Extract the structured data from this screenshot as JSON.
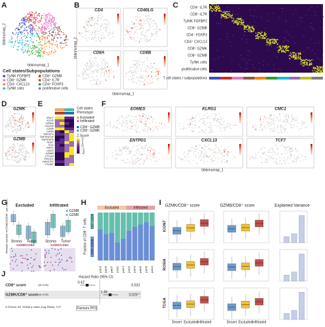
{
  "panels": {
    "A": {
      "label": "A",
      "axis_x": "bbknnumap_1",
      "axis_y": "bbknnumap_2",
      "legend_title": "Cell states/Subpopulations",
      "legend": [
        "Ty/NK FGFBP2",
        "CD8⁺ GZMB",
        "CD8⁺ GZMK",
        "CD4⁺ IL7R",
        "CD4⁺ CXCL13",
        "CD4⁺ FOXP3",
        "Ty/NK cells",
        "proliferative cells"
      ],
      "colors": [
        "#3b4cc0",
        "#d62728",
        "#e377c2",
        "#8c564b",
        "#ff7f0e",
        "#2ca02c",
        "#17becf",
        "#9467bd"
      ]
    },
    "B": {
      "label": "B",
      "genes": [
        "CD4",
        "CD40LG",
        "CD8A",
        "CD8B"
      ],
      "axis_x": "bbknnumap_1",
      "axis_y": "bbknnumap_2"
    },
    "C": {
      "label": "C",
      "rows": [
        "CD4⁺ IL7R",
        "CD8⁺ IL7R",
        "Ty/NK FGFBP2",
        "CD8⁺ GZMB",
        "CD4⁺ FOXP3",
        "CD4⁺ CXCL13",
        "CD8⁺ GZMK",
        "CD8⁺ GZMB",
        "Ty/NK cells",
        "proliferative cells"
      ],
      "bar_label": "T cell states / subpopulations"
    },
    "D": {
      "label": "D",
      "genes": [
        "GZMK",
        "GZMB"
      ],
      "axis_x": "bbknnumap_1",
      "axis_y": "bbknnumap_2"
    },
    "E": {
      "label": "E",
      "genes": [
        "GNLY",
        "ICOS",
        "GZMA",
        "CD244",
        "CD69",
        "LAYN",
        "TNFSF4",
        "TNFRSF18",
        "TNFRSF9",
        "TIGIT",
        "TOX",
        "PRF1",
        "LAG3",
        "GZMB",
        "CTLA4",
        "PDCD1",
        "HAVCR2",
        "ITGAE"
      ],
      "legend_title": "Cell states",
      "phenotype_title": "Phenotype",
      "phenotype": [
        "Excluded",
        "Infiltrated"
      ],
      "states": [
        "CD8⁺ GZMB",
        "CD8⁺ GZMK"
      ],
      "zscore_title": "Z-Score",
      "zscore_ticks": [
        "2",
        "1",
        "0",
        "-1",
        "-2"
      ]
    },
    "F": {
      "label": "F",
      "genes": [
        "EOMES",
        "KLRG1",
        "CMC1",
        "ENTPD1",
        "CXCL13",
        "TCF7"
      ],
      "axis_x": "bbknnumap_1",
      "axis_y": "bbknnumap_2"
    },
    "G": {
      "label": "G",
      "groups": [
        "Excluded",
        "Infiltrated"
      ],
      "x": [
        "Stroma",
        "Tumor"
      ],
      "legend": [
        "GZMB",
        "GZMK"
      ],
      "y_label": "Relative number of CD8A/GZMK⁺ per region",
      "img_labels": [
        "GZMB/CD8A",
        "GZMK/CD8A"
      ]
    },
    "H": {
      "label": "H",
      "groups": [
        "Excluded",
        "Infiltrated"
      ],
      "y_label": "Fraction of CD8⁺ T cells",
      "top": "CD8⁺ GZMK",
      "bottom": "CD8⁺ GZMB",
      "patients": [
        "pat03",
        "pat06",
        "pat07",
        "pat11",
        "pat13",
        "pat02",
        "pat04",
        "pat05",
        "pat09",
        "pat10"
      ],
      "gzmk": [
        0.35,
        0.45,
        0.42,
        0.62,
        0.55,
        0.38,
        0.3,
        0.25,
        0.2,
        0.28
      ]
    },
    "I": {
      "label": "I",
      "titles": [
        "GZMK/CD8⁺ score",
        "GZMB/CD8⁺ score",
        "Explained Variance"
      ],
      "cohorts": [
        "ICON7",
        "ROSIA",
        "TCGA"
      ],
      "x": [
        "Desert",
        "Excluded",
        "Infiltrated"
      ]
    },
    "J": {
      "label": "J",
      "header": "Hazard Ratio (95% CI)",
      "rows": [
        "CD8⁺ score",
        "GZMK/CD8⁺ score"
      ],
      "n": [
        "(N=103)",
        "(N=103)"
      ],
      "hr": [
        0.62,
        1.46
      ],
      "p": [
        "0.033",
        "0.029 *"
      ],
      "footer": "# Events: 64; Global p-value (Log-Rank): 0.07",
      "favours": "Favours PFS"
    }
  }
}
